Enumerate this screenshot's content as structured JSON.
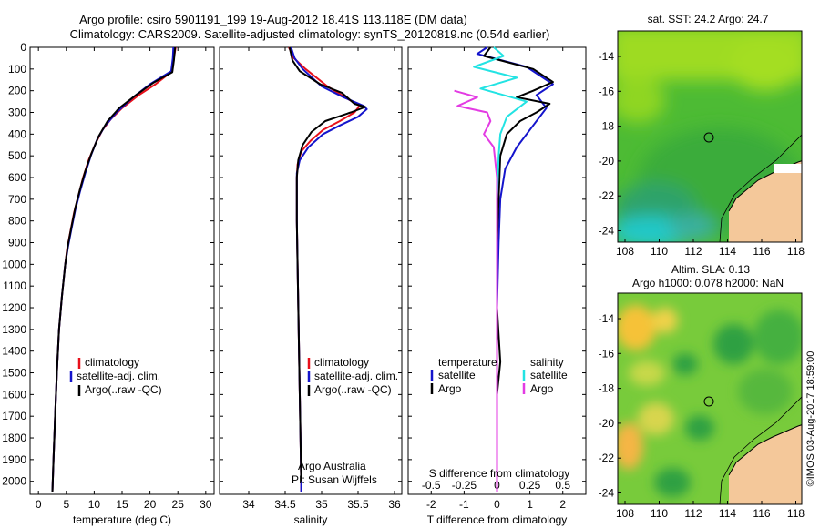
{
  "header": {
    "line1": "Argo profile: csiro 5901191_199 19-Aug-2012 18.41S 113.118E (DM data)",
    "line2": "Climatology: CARS2009. Satellite-adjusted climatology: synTS_20120819.nc (0.54d earlier)"
  },
  "colors": {
    "climatology": "#e8101b",
    "satellite": "#1414cc",
    "argo": "#000000",
    "sal_satellite": "#22e3e3",
    "sal_argo": "#e33be3",
    "land": "#f4c89a"
  },
  "chart_data": [
    {
      "id": "temperature",
      "type": "line",
      "xlabel": "temperature (deg C)",
      "ylabel": "",
      "xlim": [
        -1.5,
        31.5
      ],
      "ylim": [
        2060,
        0
      ],
      "xticks": [
        0,
        5,
        10,
        15,
        20,
        25,
        30
      ],
      "yticks": [
        0,
        100,
        200,
        300,
        400,
        500,
        600,
        700,
        800,
        900,
        1000,
        1100,
        1200,
        1300,
        1400,
        1500,
        1600,
        1700,
        1800,
        1900,
        2000
      ],
      "legend": [
        "climatology",
        "satellite-adj. clim.",
        "Argo(..raw -QC)"
      ],
      "series": [
        {
          "name": "climatology",
          "color": "#e8101b",
          "points": [
            [
              24.6,
              0
            ],
            [
              24.3,
              50
            ],
            [
              24,
              110
            ],
            [
              21,
              170
            ],
            [
              18,
              220
            ],
            [
              15,
              280
            ],
            [
              13,
              330
            ],
            [
              11.5,
              380
            ],
            [
              10.3,
              440
            ],
            [
              9,
              520
            ],
            [
              8,
              600
            ],
            [
              7.2,
              680
            ],
            [
              6.4,
              760
            ],
            [
              5.8,
              840
            ],
            [
              5.2,
              920
            ],
            [
              4.8,
              1000
            ],
            [
              4.2,
              1150
            ],
            [
              3.7,
              1300
            ],
            [
              3.3,
              1500
            ],
            [
              3,
              1700
            ],
            [
              2.7,
              1900
            ],
            [
              2.5,
              2050
            ]
          ]
        },
        {
          "name": "satellite-adj. clim.",
          "color": "#1414cc",
          "points": [
            [
              24.2,
              0
            ],
            [
              24.1,
              50
            ],
            [
              23.8,
              110
            ],
            [
              20,
              170
            ],
            [
              17,
              230
            ],
            [
              14,
              300
            ],
            [
              12,
              360
            ],
            [
              10.6,
              420
            ],
            [
              9.4,
              500
            ],
            [
              8.4,
              580
            ],
            [
              7.5,
              660
            ],
            [
              6.6,
              750
            ],
            [
              5.9,
              840
            ],
            [
              5.3,
              920
            ],
            [
              4.8,
              1000
            ],
            [
              4.2,
              1150
            ],
            [
              3.7,
              1300
            ],
            [
              3.3,
              1500
            ],
            [
              3,
              1700
            ],
            [
              2.7,
              1900
            ],
            [
              2.5,
              2050
            ]
          ]
        },
        {
          "name": "Argo",
          "color": "#000000",
          "points": [
            [
              24.5,
              0
            ],
            [
              24.3,
              60
            ],
            [
              24,
              115
            ],
            [
              20.5,
              165
            ],
            [
              17.5,
              220
            ],
            [
              14.5,
              280
            ],
            [
              12.4,
              340
            ],
            [
              10.8,
              410
            ],
            [
              9.5,
              490
            ],
            [
              8.4,
              570
            ],
            [
              7.5,
              650
            ],
            [
              6.6,
              740
            ],
            [
              5.9,
              830
            ],
            [
              5.3,
              910
            ],
            [
              4.8,
              1000
            ],
            [
              4.2,
              1150
            ],
            [
              3.7,
              1300
            ],
            [
              3.3,
              1500
            ],
            [
              3,
              1700
            ],
            [
              2.7,
              1900
            ],
            [
              2.5,
              2050
            ]
          ]
        }
      ]
    },
    {
      "id": "salinity",
      "type": "line",
      "xlabel": "salinity",
      "xlim": [
        33.6,
        36.1
      ],
      "ylim": [
        2060,
        0
      ],
      "xticks": [
        34,
        34.5,
        35,
        35.5,
        36
      ],
      "legend": [
        "climatology",
        "satellite-adj. clim.",
        "Argo(..raw -QC)"
      ],
      "annotation_lines": [
        "Argo Australia",
        "PI: Susan Wijffels"
      ],
      "series": [
        {
          "name": "climatology",
          "color": "#e8101b",
          "points": [
            [
              34.55,
              0
            ],
            [
              34.62,
              50
            ],
            [
              34.78,
              100
            ],
            [
              35.08,
              180
            ],
            [
              35.32,
              230
            ],
            [
              35.52,
              270
            ],
            [
              35.45,
              300
            ],
            [
              35.25,
              340
            ],
            [
              35.02,
              380
            ],
            [
              34.85,
              430
            ],
            [
              34.72,
              480
            ],
            [
              34.67,
              540
            ],
            [
              34.66,
              600
            ],
            [
              34.66,
              800
            ],
            [
              34.67,
              1000
            ],
            [
              34.68,
              1200
            ],
            [
              34.69,
              1400
            ],
            [
              34.7,
              1600
            ],
            [
              34.71,
              1800
            ],
            [
              34.72,
              2000
            ],
            [
              34.72,
              2050
            ]
          ]
        },
        {
          "name": "satellite-adj. clim.",
          "color": "#1414cc",
          "points": [
            [
              34.58,
              0
            ],
            [
              34.63,
              50
            ],
            [
              34.74,
              100
            ],
            [
              35,
              180
            ],
            [
              35.3,
              230
            ],
            [
              35.58,
              270
            ],
            [
              35.62,
              285
            ],
            [
              35.5,
              320
            ],
            [
              35.25,
              360
            ],
            [
              35.02,
              400
            ],
            [
              34.82,
              460
            ],
            [
              34.7,
              520
            ],
            [
              34.66,
              580
            ],
            [
              34.66,
              800
            ],
            [
              34.67,
              1000
            ],
            [
              34.68,
              1200
            ],
            [
              34.69,
              1400
            ],
            [
              34.7,
              1600
            ],
            [
              34.71,
              1800
            ],
            [
              34.72,
              2000
            ],
            [
              34.72,
              2050
            ]
          ]
        },
        {
          "name": "Argo",
          "color": "#000000",
          "points": [
            [
              34.56,
              0
            ],
            [
              34.6,
              60
            ],
            [
              34.7,
              110
            ],
            [
              34.98,
              170
            ],
            [
              35.28,
              210
            ],
            [
              35.45,
              260
            ],
            [
              35.6,
              275
            ],
            [
              35.4,
              300
            ],
            [
              35.05,
              340
            ],
            [
              34.86,
              390
            ],
            [
              34.74,
              450
            ],
            [
              34.68,
              520
            ],
            [
              34.66,
              600
            ],
            [
              34.66,
              800
            ],
            [
              34.67,
              1000
            ],
            [
              34.68,
              1200
            ],
            [
              34.69,
              1400
            ],
            [
              34.7,
              1600
            ],
            [
              34.71,
              1800
            ],
            [
              34.72,
              2000
            ]
          ]
        }
      ]
    },
    {
      "id": "difference",
      "type": "line",
      "xlabel": "T difference from climatology",
      "top_label": "S difference from climatology",
      "xlim": [
        -2.7,
        2.7
      ],
      "ylim": [
        2060,
        0
      ],
      "xticks": [
        -2,
        -1,
        0,
        1,
        2
      ],
      "top_ticks": [
        -0.5,
        -0.25,
        0,
        0.25,
        0.5
      ],
      "legend_left": {
        "title": "temperature",
        "items": [
          "satellite",
          "Argo"
        ]
      },
      "legend_right": {
        "title": "salinity",
        "items": [
          "satellite",
          "Argo"
        ]
      },
      "series": [
        {
          "name": "temperature satellite",
          "color": "#1414cc",
          "points": [
            [
              -0.3,
              0
            ],
            [
              -0.6,
              30
            ],
            [
              0.9,
              90
            ],
            [
              1.7,
              170
            ],
            [
              1.2,
              220
            ],
            [
              1.5,
              280
            ],
            [
              1.1,
              360
            ],
            [
              0.6,
              460
            ],
            [
              0.25,
              560
            ],
            [
              0.1,
              700
            ],
            [
              0.05,
              900
            ],
            [
              0,
              1200
            ],
            [
              0,
              1600
            ],
            [
              0,
              2050
            ]
          ]
        },
        {
          "name": "temperature Argo",
          "color": "#000000",
          "points": [
            [
              -0.2,
              0
            ],
            [
              -0.4,
              40
            ],
            [
              1.1,
              100
            ],
            [
              1.7,
              160
            ],
            [
              1.1,
              200
            ],
            [
              0.6,
              230
            ],
            [
              1.6,
              260
            ],
            [
              1.2,
              300
            ],
            [
              0.7,
              340
            ],
            [
              0.3,
              400
            ],
            [
              0.1,
              500
            ],
            [
              0.05,
              700
            ],
            [
              0,
              900
            ],
            [
              0,
              1200
            ],
            [
              0.1,
              1450
            ],
            [
              0,
              1600
            ],
            [
              0,
              2050
            ]
          ]
        },
        {
          "name": "salinity satellite",
          "color": "#22e3e3",
          "points": [
            [
              -0.1,
              0
            ],
            [
              0.2,
              40
            ],
            [
              -0.7,
              90
            ],
            [
              0.6,
              140
            ],
            [
              -0.5,
              190
            ],
            [
              0.9,
              250
            ],
            [
              0.3,
              320
            ],
            [
              0.1,
              400
            ],
            [
              0.05,
              500
            ],
            [
              0,
              700
            ],
            [
              0,
              2050
            ]
          ]
        },
        {
          "name": "salinity Argo",
          "color": "#e33be3",
          "points": [
            [
              -1.3,
              200
            ],
            [
              -0.6,
              230
            ],
            [
              -1.2,
              270
            ],
            [
              -0.3,
              300
            ],
            [
              -0.2,
              340
            ],
            [
              -0.4,
              400
            ],
            [
              -0.1,
              460
            ],
            [
              0,
              600
            ],
            [
              0,
              2050
            ]
          ]
        }
      ]
    }
  ],
  "maps": {
    "sst": {
      "title": "sat. SST: 24.2 Argo: 24.7",
      "yticks": [
        "-14",
        "-16",
        "-18",
        "-20",
        "-22",
        "-24"
      ],
      "xticks": [
        "108",
        "110",
        "112",
        "114",
        "116",
        "118"
      ]
    },
    "sla": {
      "title1": "Altim. SLA: 0.13",
      "title2": "Argo h1000: 0.078 h2000: NaN",
      "yticks": [
        "-14",
        "-16",
        "-18",
        "-20",
        "-22",
        "-24"
      ],
      "xticks": [
        "108",
        "110",
        "112",
        "114",
        "116",
        "118"
      ]
    }
  },
  "watermark": "©IMOS 03-Aug-2017 18:59:00"
}
